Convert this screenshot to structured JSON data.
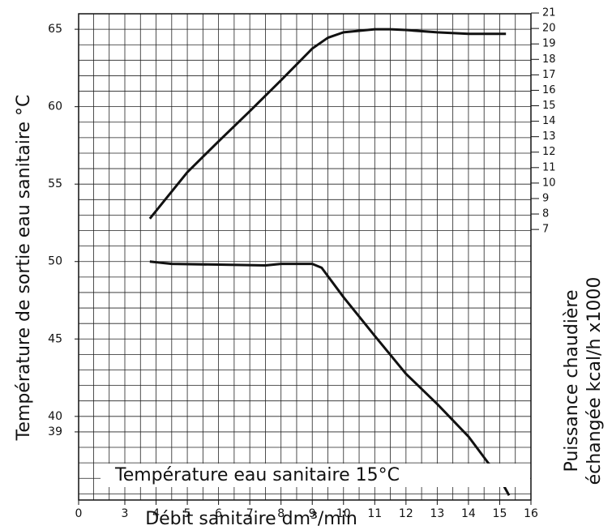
{
  "chart_data": {
    "type": "line",
    "xlabel": "Débit sanitaire dm³/min",
    "ylabel": "Température de sortie eau sanitaire °C",
    "y2label": [
      "Puissance chaudière",
      "échangée kcal/h x1000"
    ],
    "annotation": "Température eau sanitaire 15°C",
    "xlim": [
      0,
      16
    ],
    "xticks": [
      0,
      3,
      4,
      5,
      6,
      7,
      8,
      9,
      10,
      11,
      12,
      13,
      14,
      15,
      16
    ],
    "ylim": [
      34.6,
      66
    ],
    "yticks": [
      39,
      40,
      45,
      50,
      55,
      60,
      65
    ],
    "y2lim": [
      -10.5,
      20.95
    ],
    "y2ticks": [
      7,
      8,
      9,
      10,
      11,
      12,
      13,
      14,
      15,
      16,
      17,
      18,
      19,
      20,
      21
    ],
    "grid": true,
    "series": [
      {
        "color": "#111111",
        "axis": "y2",
        "x": [
          3.8,
          5,
          6,
          7,
          8,
          9,
          9.5,
          10,
          11,
          11.5,
          12,
          13,
          14,
          15.2
        ],
        "values": [
          7.7,
          10.7,
          12.7,
          14.65,
          16.65,
          18.7,
          19.4,
          19.75,
          19.95,
          19.95,
          19.9,
          19.75,
          19.65,
          19.65
        ]
      },
      {
        "color": "#111111",
        "x": [
          3.8,
          4.5,
          6,
          7.5,
          8,
          9,
          9.3,
          10,
          11,
          12,
          13,
          14,
          15,
          15.3
        ],
        "values": [
          50.0,
          49.85,
          49.8,
          49.75,
          49.85,
          49.85,
          49.6,
          47.7,
          45.2,
          42.75,
          40.8,
          38.7,
          36.0,
          34.9
        ]
      }
    ]
  }
}
